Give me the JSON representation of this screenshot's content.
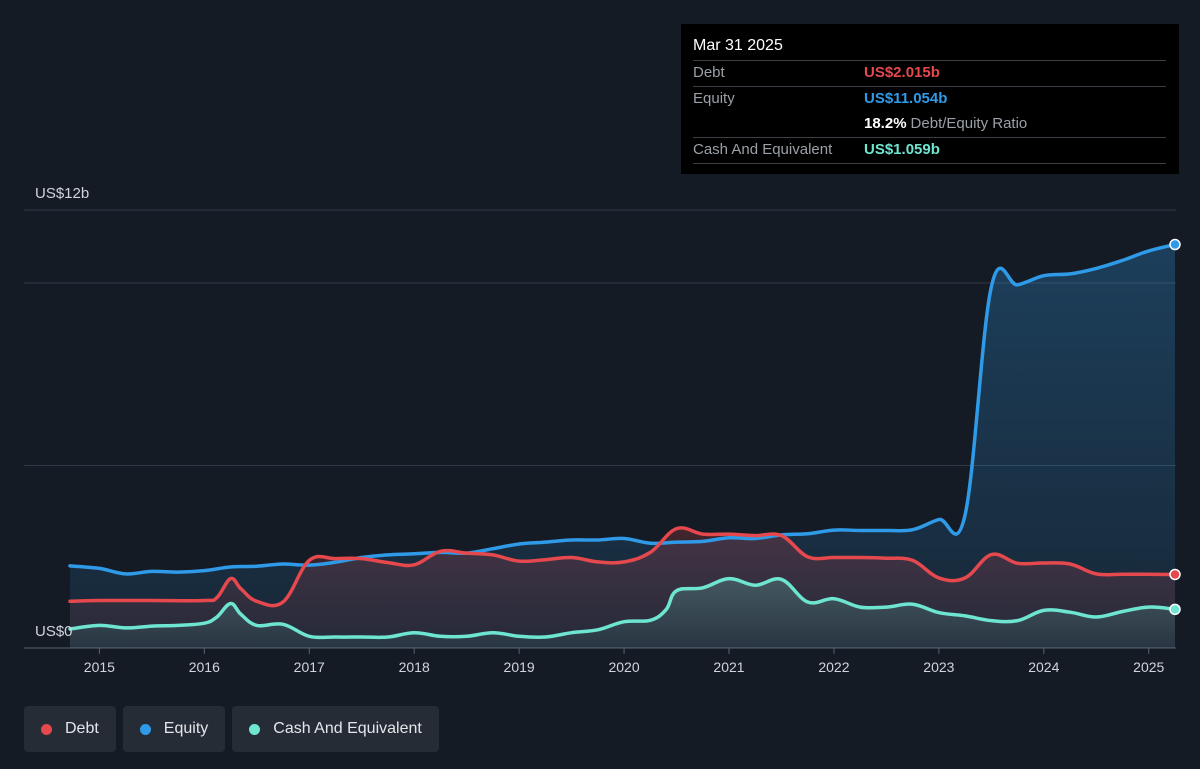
{
  "tooltip": {
    "date": "Mar 31 2025",
    "debt_label": "Debt",
    "debt_value": "US$2.015b",
    "equity_label": "Equity",
    "equity_value": "US$11.054b",
    "ratio_value": "18.2%",
    "ratio_label": "Debt/Equity Ratio",
    "cash_label": "Cash And Equivalent",
    "cash_value": "US$1.059b"
  },
  "legend": [
    {
      "label": "Debt",
      "color": "#e5484d"
    },
    {
      "label": "Equity",
      "color": "#2f9ae8"
    },
    {
      "label": "Cash And Equivalent",
      "color": "#6ee5d0"
    }
  ],
  "chart_data": {
    "type": "line",
    "title": "",
    "xlabel": "",
    "ylabel": "",
    "y_top_label": "US$12b",
    "y_bottom_label": "US$0",
    "ylim": [
      0,
      12
    ],
    "xlim": [
      2014.72,
      2025.25
    ],
    "x_ticks": [
      "2015",
      "2016",
      "2017",
      "2018",
      "2019",
      "2020",
      "2021",
      "2022",
      "2023",
      "2024",
      "2025"
    ],
    "grid": true,
    "legend_position": "bottom-left",
    "series": [
      {
        "name": "Debt",
        "color": "#e5484d",
        "x": [
          2014.72,
          2015.0,
          2015.5,
          2016.0,
          2016.12,
          2016.25,
          2016.35,
          2016.5,
          2016.75,
          2017.0,
          2017.25,
          2017.5,
          2017.75,
          2018.0,
          2018.25,
          2018.5,
          2018.75,
          2019.0,
          2019.25,
          2019.5,
          2019.75,
          2020.0,
          2020.25,
          2020.5,
          2020.75,
          2021.0,
          2021.25,
          2021.5,
          2021.75,
          2022.0,
          2022.25,
          2022.5,
          2022.75,
          2023.0,
          2023.25,
          2023.5,
          2023.75,
          2024.0,
          2024.25,
          2024.5,
          2024.75,
          2025.0,
          2025.25
        ],
        "values": [
          1.28,
          1.3,
          1.3,
          1.3,
          1.38,
          1.9,
          1.62,
          1.28,
          1.26,
          2.4,
          2.45,
          2.45,
          2.34,
          2.28,
          2.65,
          2.6,
          2.55,
          2.38,
          2.42,
          2.48,
          2.36,
          2.36,
          2.62,
          3.27,
          3.12,
          3.12,
          3.08,
          3.08,
          2.5,
          2.48,
          2.48,
          2.46,
          2.4,
          1.92,
          1.92,
          2.56,
          2.32,
          2.33,
          2.3,
          2.03,
          2.02,
          2.02,
          2.015
        ]
      },
      {
        "name": "Equity",
        "color": "#2f9ae8",
        "x": [
          2014.72,
          2015.0,
          2015.25,
          2015.5,
          2015.75,
          2016.0,
          2016.25,
          2016.5,
          2016.75,
          2017.0,
          2017.25,
          2017.5,
          2017.75,
          2018.0,
          2018.25,
          2018.5,
          2018.75,
          2019.0,
          2019.25,
          2019.5,
          2019.75,
          2020.0,
          2020.25,
          2020.5,
          2020.75,
          2021.0,
          2021.25,
          2021.5,
          2021.75,
          2022.0,
          2022.25,
          2022.5,
          2022.75,
          2023.0,
          2023.25,
          2023.5,
          2023.75,
          2024.0,
          2024.25,
          2024.5,
          2024.75,
          2025.0,
          2025.25
        ],
        "values": [
          2.25,
          2.18,
          2.03,
          2.1,
          2.08,
          2.12,
          2.22,
          2.24,
          2.3,
          2.27,
          2.35,
          2.48,
          2.55,
          2.58,
          2.62,
          2.6,
          2.72,
          2.85,
          2.9,
          2.96,
          2.96,
          3.0,
          2.87,
          2.9,
          2.92,
          3.02,
          3.0,
          3.1,
          3.13,
          3.23,
          3.22,
          3.22,
          3.24,
          3.52,
          3.65,
          9.9,
          9.95,
          10.2,
          10.25,
          10.4,
          10.62,
          10.88,
          11.054
        ]
      },
      {
        "name": "Cash And Equivalent",
        "color": "#6ee5d0",
        "x": [
          2014.72,
          2015.0,
          2015.25,
          2015.5,
          2015.75,
          2016.0,
          2016.12,
          2016.25,
          2016.35,
          2016.5,
          2016.75,
          2017.0,
          2017.25,
          2017.5,
          2017.75,
          2018.0,
          2018.25,
          2018.5,
          2018.75,
          2019.0,
          2019.25,
          2019.5,
          2019.75,
          2020.0,
          2020.25,
          2020.4,
          2020.5,
          2020.75,
          2021.0,
          2021.25,
          2021.5,
          2021.75,
          2022.0,
          2022.25,
          2022.5,
          2022.75,
          2023.0,
          2023.25,
          2023.5,
          2023.75,
          2024.0,
          2024.25,
          2024.5,
          2024.75,
          2025.0,
          2025.25
        ],
        "values": [
          0.52,
          0.62,
          0.55,
          0.6,
          0.62,
          0.68,
          0.85,
          1.22,
          0.92,
          0.62,
          0.65,
          0.32,
          0.3,
          0.3,
          0.3,
          0.42,
          0.32,
          0.32,
          0.42,
          0.32,
          0.3,
          0.42,
          0.5,
          0.72,
          0.76,
          1.05,
          1.57,
          1.65,
          1.9,
          1.72,
          1.88,
          1.26,
          1.35,
          1.12,
          1.12,
          1.2,
          0.97,
          0.88,
          0.75,
          0.75,
          1.03,
          0.98,
          0.85,
          1.0,
          1.12,
          1.059
        ]
      }
    ]
  }
}
